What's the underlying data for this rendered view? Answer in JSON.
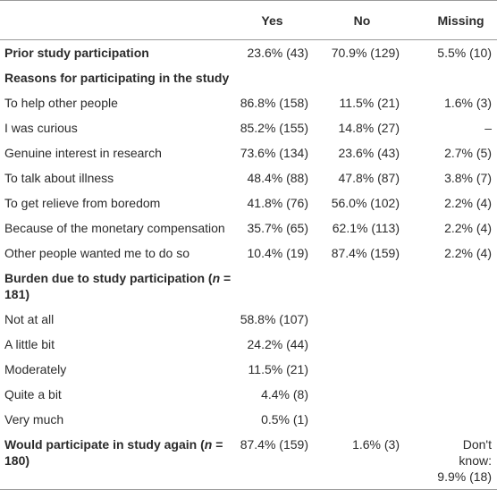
{
  "table": {
    "columns": [
      "Yes",
      "No",
      "Missing"
    ],
    "rows": [
      {
        "label": "Prior study participation",
        "bold": true,
        "yes": "23.6% (43)",
        "no": "70.9% (129)",
        "missing": "5.5% (10)"
      },
      {
        "label": "Reasons for participating in the study",
        "bold": true
      },
      {
        "label": "To help other people",
        "yes": "86.8% (158)",
        "no": "11.5% (21)",
        "missing": "1.6% (3)"
      },
      {
        "label": "I was curious",
        "yes": "85.2% (155)",
        "no": "14.8% (27)",
        "missing": "–"
      },
      {
        "label": "Genuine interest in research",
        "yes": "73.6% (134)",
        "no": "23.6% (43)",
        "missing": "2.7% (5)"
      },
      {
        "label": "To talk about illness",
        "yes": "48.4% (88)",
        "no": "47.8% (87)",
        "missing": "3.8% (7)"
      },
      {
        "label": "To get relieve from boredom",
        "yes": "41.8% (76)",
        "no": "56.0% (102)",
        "missing": "2.2% (4)"
      },
      {
        "label": "Because of the monetary compensation",
        "yes": "35.7% (65)",
        "no": "62.1% (113)",
        "missing": "2.2% (4)"
      },
      {
        "label": "Other people wanted me to do so",
        "yes": "10.4% (19)",
        "no": "87.4% (159)",
        "missing": "2.2% (4)"
      },
      {
        "label_parts": [
          {
            "text": "Burden due to study participation ("
          },
          {
            "text": "n",
            "italic": true
          },
          {
            "text": " = 181)"
          }
        ],
        "bold": true
      },
      {
        "label": "Not at all",
        "yes": "58.8% (107)"
      },
      {
        "label": "A little bit",
        "yes": "24.2% (44)"
      },
      {
        "label": "Moderately",
        "yes": "11.5% (21)"
      },
      {
        "label": "Quite a bit",
        "yes": "4.4% (8)"
      },
      {
        "label": "Very much",
        "yes": "0.5% (1)"
      },
      {
        "label_parts": [
          {
            "text": "Would participate in study again ("
          },
          {
            "text": "n",
            "italic": true
          },
          {
            "text": " = 180)"
          }
        ],
        "bold": true,
        "yes": "87.4% (159)",
        "no": "1.6% (3)",
        "missing": "Don't know: 9.9% (18)"
      }
    ]
  }
}
